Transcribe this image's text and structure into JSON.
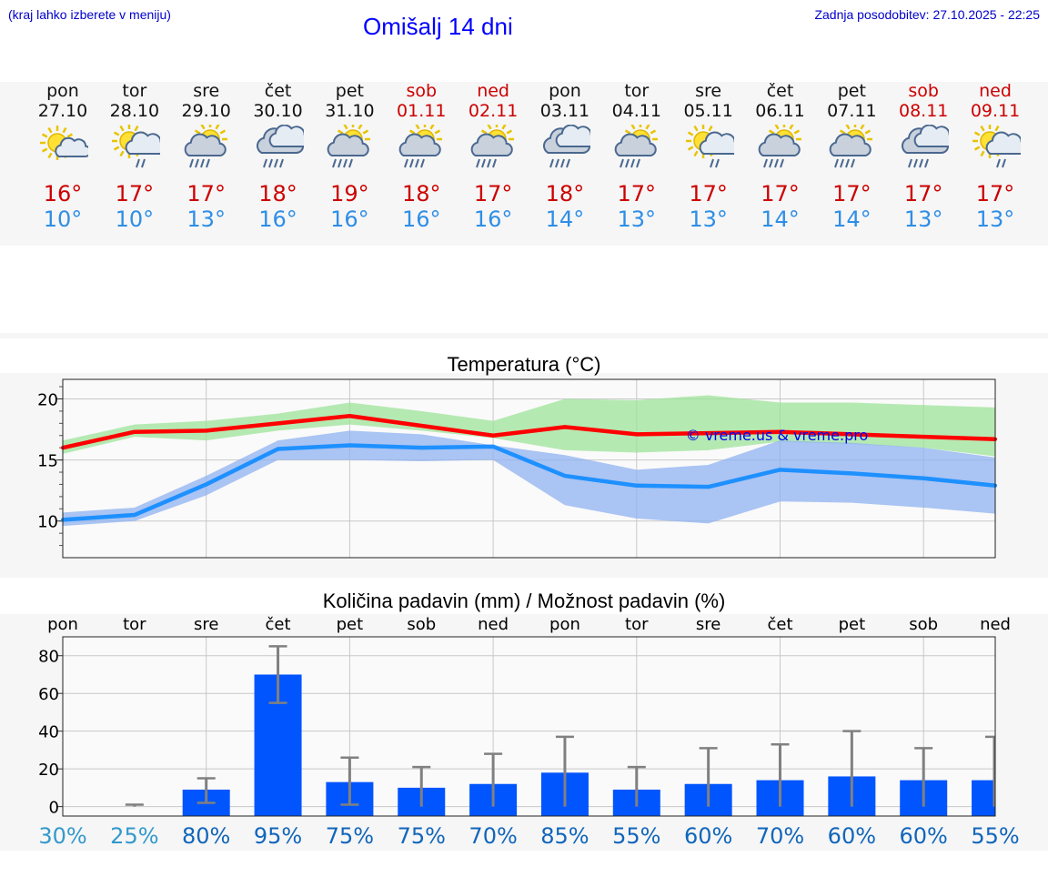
{
  "header": {
    "menu_hint": "(kraj lahko izberete v meniju)",
    "title": "Omišalj 14 dni",
    "updated": "Zadnja posodobitev: 27.10.2025 - 22:25"
  },
  "days": [
    {
      "name": "pon",
      "date": "27.10",
      "max": "16°",
      "min": "10°",
      "icon": "sun-cloud-icon",
      "weekend": false
    },
    {
      "name": "tor",
      "date": "28.10",
      "max": "17°",
      "min": "10°",
      "icon": "sun-cloud-rain-icon",
      "weekend": false
    },
    {
      "name": "sre",
      "date": "29.10",
      "max": "17°",
      "min": "13°",
      "icon": "sun-cloud-heavy-rain-icon",
      "weekend": false
    },
    {
      "name": "čet",
      "date": "30.10",
      "max": "18°",
      "min": "16°",
      "icon": "cloud-heavy-rain-icon",
      "weekend": false
    },
    {
      "name": "pet",
      "date": "31.10",
      "max": "19°",
      "min": "16°",
      "icon": "sun-cloud-heavy-rain-icon",
      "weekend": false
    },
    {
      "name": "sob",
      "date": "01.11",
      "max": "18°",
      "min": "16°",
      "icon": "sun-cloud-heavy-rain-icon",
      "weekend": true
    },
    {
      "name": "ned",
      "date": "02.11",
      "max": "17°",
      "min": "16°",
      "icon": "sun-cloud-heavy-rain-icon",
      "weekend": true
    },
    {
      "name": "pon",
      "date": "03.11",
      "max": "18°",
      "min": "14°",
      "icon": "cloud-heavy-rain-icon",
      "weekend": false
    },
    {
      "name": "tor",
      "date": "04.11",
      "max": "17°",
      "min": "13°",
      "icon": "sun-cloud-heavy-rain-icon",
      "weekend": false
    },
    {
      "name": "sre",
      "date": "05.11",
      "max": "17°",
      "min": "13°",
      "icon": "sun-cloud-rain-icon",
      "weekend": false
    },
    {
      "name": "čet",
      "date": "06.11",
      "max": "17°",
      "min": "14°",
      "icon": "sun-cloud-heavy-rain-icon",
      "weekend": false
    },
    {
      "name": "pet",
      "date": "07.11",
      "max": "17°",
      "min": "14°",
      "icon": "sun-cloud-heavy-rain-icon",
      "weekend": false
    },
    {
      "name": "sob",
      "date": "08.11",
      "max": "17°",
      "min": "13°",
      "icon": "cloud-heavy-rain-icon",
      "weekend": true
    },
    {
      "name": "ned",
      "date": "09.11",
      "max": "17°",
      "min": "13°",
      "icon": "sun-cloud-rain-icon",
      "weekend": true
    }
  ],
  "colors": {
    "max": "#ff0000",
    "min": "#1e90ff",
    "max_band": "#9ee39a",
    "min_band": "#8fb1f0",
    "bar": "#0055ff",
    "error": "#808080",
    "pct_light": "#3399cc",
    "pct_dark": "#1166bb",
    "weekend": "#cc0000",
    "watermark": "#0000ee"
  },
  "chart_data": [
    {
      "type": "line",
      "title": "Temperatura (°C)",
      "xlabel": "",
      "ylabel": "",
      "ylim": [
        7,
        21.6
      ],
      "yticks": [
        10,
        15,
        20
      ],
      "watermark": "© vreme.us & vreme.pro",
      "series": [
        {
          "name": "max",
          "values": [
            16.0,
            17.3,
            17.4,
            18.0,
            18.6,
            17.8,
            17.0,
            17.7,
            17.1,
            17.2,
            17.3,
            17.1,
            16.9,
            16.7
          ],
          "band_low": [
            15.5,
            16.9,
            16.6,
            17.4,
            17.9,
            17.4,
            16.8,
            15.8,
            15.6,
            15.8,
            16.5,
            16.3,
            16.0,
            15.3
          ],
          "band_high": [
            16.6,
            17.9,
            18.2,
            18.8,
            19.7,
            19.0,
            18.2,
            20.0,
            19.9,
            20.3,
            19.7,
            19.7,
            19.5,
            19.3
          ]
        },
        {
          "name": "min",
          "values": [
            10.1,
            10.5,
            13.0,
            15.9,
            16.2,
            16.0,
            16.1,
            13.7,
            12.9,
            12.8,
            14.2,
            13.9,
            13.5,
            12.9
          ],
          "band_low": [
            9.6,
            10.0,
            12.1,
            15.0,
            15.0,
            14.9,
            15.0,
            11.3,
            10.2,
            9.8,
            11.6,
            11.5,
            11.1,
            10.6
          ],
          "band_high": [
            10.7,
            11.1,
            13.7,
            16.6,
            17.4,
            17.1,
            16.2,
            15.4,
            14.2,
            14.6,
            16.6,
            16.4,
            16.0,
            15.2
          ]
        }
      ]
    },
    {
      "type": "bar",
      "title": "Količina padavin (mm) / Možnost padavin (%)",
      "categories": [
        "pon",
        "tor",
        "sre",
        "čet",
        "pet",
        "sob",
        "ned",
        "pon",
        "tor",
        "sre",
        "čet",
        "pet",
        "sob",
        "ned"
      ],
      "values": [
        0,
        0,
        9,
        70,
        13,
        10,
        12,
        18,
        9,
        12,
        14,
        16,
        14,
        14
      ],
      "error_low": [
        0,
        0,
        2,
        55,
        1,
        0,
        0,
        0,
        0,
        0,
        0,
        0,
        0,
        0
      ],
      "error_high": [
        0,
        1,
        15,
        85,
        26,
        21,
        28,
        37,
        21,
        31,
        33,
        40,
        31,
        37
      ],
      "ylim": [
        -5,
        90
      ],
      "yticks": [
        0,
        20,
        40,
        60,
        80
      ],
      "probabilities": [
        "30%",
        "25%",
        "80%",
        "95%",
        "75%",
        "75%",
        "70%",
        "85%",
        "55%",
        "60%",
        "70%",
        "60%",
        "60%",
        "55%"
      ]
    }
  ]
}
